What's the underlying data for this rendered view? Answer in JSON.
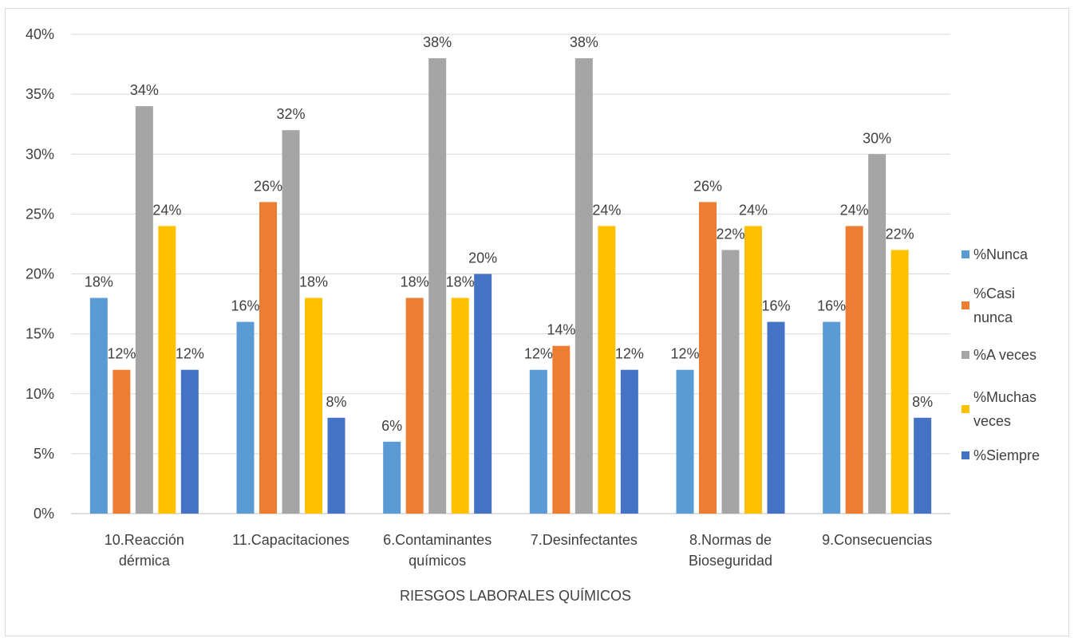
{
  "chart_data": {
    "type": "bar",
    "title": "",
    "xlabel": "RIESGOS LABORALES QUÍMICOS",
    "ylabel": "",
    "ylim": [
      0,
      0.4
    ],
    "yticks": [
      "0%",
      "5%",
      "10%",
      "15%",
      "20%",
      "25%",
      "30%",
      "35%",
      "40%"
    ],
    "grid": true,
    "legend_position": "right",
    "categories": [
      [
        "10.Reacción",
        "dérmica"
      ],
      [
        "11.Capacitaciones"
      ],
      [
        "6.Contaminantes",
        "químicos"
      ],
      [
        "7.Desinfectantes"
      ],
      [
        "8.Normas de",
        "Bioseguridad"
      ],
      [
        "9.Consecuencias"
      ]
    ],
    "series": [
      {
        "name": "%Nunca",
        "legend_lines": [
          "%Nunca"
        ],
        "color": "#5B9BD5",
        "values": [
          0.18,
          0.16,
          0.06,
          0.12,
          0.12,
          0.16
        ],
        "labels": [
          "18%",
          "16%",
          "6%",
          "12%",
          "12%",
          "16%"
        ]
      },
      {
        "name": "%Casi nunca",
        "legend_lines": [
          "%Casi",
          "nunca"
        ],
        "color": "#ED7D31",
        "values": [
          0.12,
          0.26,
          0.18,
          0.14,
          0.26,
          0.24
        ],
        "labels": [
          "12%",
          "26%",
          "18%",
          "14%",
          "26%",
          "24%"
        ]
      },
      {
        "name": "%A veces",
        "legend_lines": [
          "%A veces"
        ],
        "color": "#A5A5A5",
        "values": [
          0.34,
          0.32,
          0.38,
          0.38,
          0.22,
          0.3
        ],
        "labels": [
          "34%",
          "32%",
          "38%",
          "38%",
          "22%",
          "30%"
        ]
      },
      {
        "name": "%Muchas veces",
        "legend_lines": [
          "%Muchas",
          "veces"
        ],
        "color": "#FFC000",
        "values": [
          0.24,
          0.18,
          0.18,
          0.24,
          0.24,
          0.22
        ],
        "labels": [
          "24%",
          "18%",
          "18%",
          "24%",
          "24%",
          "22%"
        ]
      },
      {
        "name": "%Siempre",
        "legend_lines": [
          "%Siempre"
        ],
        "color": "#4472C4",
        "values": [
          0.12,
          0.08,
          0.2,
          0.12,
          0.16,
          0.08
        ],
        "labels": [
          "12%",
          "8%",
          "20%",
          "12%",
          "16%",
          "8%"
        ]
      }
    ]
  }
}
